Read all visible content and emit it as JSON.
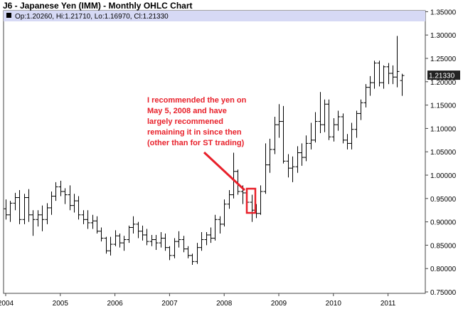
{
  "chart_data": {
    "type": "ohlc",
    "title": "J6 - Japanese Yen (IMM) - Monthly OHLC Chart",
    "info": "Op:1.20260, Hi:1.21710, Lo:1.16970, Cl:1.21330",
    "last_value": "1.21330",
    "ylim": [
      0.75,
      1.36
    ],
    "y_ticks": [
      "0.75000",
      "0.80000",
      "0.85000",
      "0.90000",
      "0.95000",
      "1.00000",
      "1.05000",
      "1.10000",
      "1.15000",
      "1.20000",
      "1.25000",
      "1.30000",
      "1.35000"
    ],
    "x_ticks": [
      "2004",
      "2005",
      "2006",
      "2007",
      "2008",
      "2009",
      "2010",
      "2011"
    ],
    "grid": false,
    "annotation": {
      "lines": [
        "I recommended the yen on",
        "May 5, 2008 and have",
        "largely recommened",
        "remaining it in since then",
        "(other than for ST trading)"
      ]
    },
    "bars": [
      {
        "date": "2004-01",
        "o": 0.928,
        "h": 0.948,
        "l": 0.905,
        "c": 0.915
      },
      {
        "date": "2004-02",
        "o": 0.915,
        "h": 0.945,
        "l": 0.9,
        "c": 0.94
      },
      {
        "date": "2004-03",
        "o": 0.94,
        "h": 0.962,
        "l": 0.925,
        "c": 0.952
      },
      {
        "date": "2004-04",
        "o": 0.952,
        "h": 0.968,
        "l": 0.895,
        "c": 0.905
      },
      {
        "date": "2004-05",
        "o": 0.905,
        "h": 0.96,
        "l": 0.895,
        "c": 0.952
      },
      {
        "date": "2004-06",
        "o": 0.952,
        "h": 0.97,
        "l": 0.9,
        "c": 0.915
      },
      {
        "date": "2004-07",
        "o": 0.915,
        "h": 0.925,
        "l": 0.87,
        "c": 0.905
      },
      {
        "date": "2004-08",
        "o": 0.905,
        "h": 0.925,
        "l": 0.89,
        "c": 0.915
      },
      {
        "date": "2004-09",
        "o": 0.915,
        "h": 0.935,
        "l": 0.88,
        "c": 0.905
      },
      {
        "date": "2004-10",
        "o": 0.905,
        "h": 0.94,
        "l": 0.895,
        "c": 0.93
      },
      {
        "date": "2004-11",
        "o": 0.93,
        "h": 0.965,
        "l": 0.915,
        "c": 0.955
      },
      {
        "date": "2004-12",
        "o": 0.955,
        "h": 0.985,
        "l": 0.945,
        "c": 0.975
      },
      {
        "date": "2005-01",
        "o": 0.975,
        "h": 0.988,
        "l": 0.955,
        "c": 0.965
      },
      {
        "date": "2005-02",
        "o": 0.965,
        "h": 0.972,
        "l": 0.938,
        "c": 0.958
      },
      {
        "date": "2005-03",
        "o": 0.958,
        "h": 0.978,
        "l": 0.925,
        "c": 0.935
      },
      {
        "date": "2005-04",
        "o": 0.935,
        "h": 0.96,
        "l": 0.92,
        "c": 0.945
      },
      {
        "date": "2005-05",
        "o": 0.945,
        "h": 0.955,
        "l": 0.905,
        "c": 0.915
      },
      {
        "date": "2005-06",
        "o": 0.915,
        "h": 0.925,
        "l": 0.895,
        "c": 0.905
      },
      {
        "date": "2005-07",
        "o": 0.905,
        "h": 0.925,
        "l": 0.885,
        "c": 0.898
      },
      {
        "date": "2005-08",
        "o": 0.898,
        "h": 0.915,
        "l": 0.885,
        "c": 0.902
      },
      {
        "date": "2005-09",
        "o": 0.902,
        "h": 0.912,
        "l": 0.875,
        "c": 0.88
      },
      {
        "date": "2005-10",
        "o": 0.88,
        "h": 0.888,
        "l": 0.858,
        "c": 0.865
      },
      {
        "date": "2005-11",
        "o": 0.865,
        "h": 0.868,
        "l": 0.832,
        "c": 0.838
      },
      {
        "date": "2005-12",
        "o": 0.838,
        "h": 0.868,
        "l": 0.828,
        "c": 0.852
      },
      {
        "date": "2006-01",
        "o": 0.852,
        "h": 0.882,
        "l": 0.848,
        "c": 0.87
      },
      {
        "date": "2006-02",
        "o": 0.87,
        "h": 0.875,
        "l": 0.845,
        "c": 0.855
      },
      {
        "date": "2006-03",
        "o": 0.855,
        "h": 0.87,
        "l": 0.838,
        "c": 0.862
      },
      {
        "date": "2006-04",
        "o": 0.862,
        "h": 0.892,
        "l": 0.855,
        "c": 0.888
      },
      {
        "date": "2006-05",
        "o": 0.888,
        "h": 0.912,
        "l": 0.875,
        "c": 0.895
      },
      {
        "date": "2006-06",
        "o": 0.895,
        "h": 0.9,
        "l": 0.865,
        "c": 0.88
      },
      {
        "date": "2006-07",
        "o": 0.88,
        "h": 0.892,
        "l": 0.86,
        "c": 0.872
      },
      {
        "date": "2006-08",
        "o": 0.872,
        "h": 0.885,
        "l": 0.85,
        "c": 0.858
      },
      {
        "date": "2006-09",
        "o": 0.858,
        "h": 0.872,
        "l": 0.848,
        "c": 0.862
      },
      {
        "date": "2006-10",
        "o": 0.862,
        "h": 0.872,
        "l": 0.84,
        "c": 0.855
      },
      {
        "date": "2006-11",
        "o": 0.855,
        "h": 0.878,
        "l": 0.845,
        "c": 0.865
      },
      {
        "date": "2006-12",
        "o": 0.865,
        "h": 0.875,
        "l": 0.838,
        "c": 0.845
      },
      {
        "date": "2007-01",
        "o": 0.845,
        "h": 0.848,
        "l": 0.818,
        "c": 0.828
      },
      {
        "date": "2007-02",
        "o": 0.828,
        "h": 0.865,
        "l": 0.822,
        "c": 0.858
      },
      {
        "date": "2007-03",
        "o": 0.858,
        "h": 0.88,
        "l": 0.845,
        "c": 0.862
      },
      {
        "date": "2007-04",
        "o": 0.862,
        "h": 0.87,
        "l": 0.835,
        "c": 0.842
      },
      {
        "date": "2007-05",
        "o": 0.842,
        "h": 0.848,
        "l": 0.822,
        "c": 0.828
      },
      {
        "date": "2007-06",
        "o": 0.828,
        "h": 0.832,
        "l": 0.808,
        "c": 0.815
      },
      {
        "date": "2007-07",
        "o": 0.815,
        "h": 0.855,
        "l": 0.81,
        "c": 0.845
      },
      {
        "date": "2007-08",
        "o": 0.845,
        "h": 0.878,
        "l": 0.838,
        "c": 0.862
      },
      {
        "date": "2007-09",
        "o": 0.862,
        "h": 0.878,
        "l": 0.85,
        "c": 0.872
      },
      {
        "date": "2007-10",
        "o": 0.872,
        "h": 0.888,
        "l": 0.855,
        "c": 0.865
      },
      {
        "date": "2007-11",
        "o": 0.865,
        "h": 0.915,
        "l": 0.86,
        "c": 0.905
      },
      {
        "date": "2007-12",
        "o": 0.905,
        "h": 0.912,
        "l": 0.875,
        "c": 0.895
      },
      {
        "date": "2008-01",
        "o": 0.895,
        "h": 0.948,
        "l": 0.89,
        "c": 0.938
      },
      {
        "date": "2008-02",
        "o": 0.938,
        "h": 0.968,
        "l": 0.928,
        "c": 0.958
      },
      {
        "date": "2008-03",
        "o": 0.958,
        "h": 1.048,
        "l": 0.95,
        "c": 1.008
      },
      {
        "date": "2008-04",
        "o": 1.008,
        "h": 1.012,
        "l": 0.958,
        "c": 0.965
      },
      {
        "date": "2008-05",
        "o": 0.965,
        "h": 0.978,
        "l": 0.938,
        "c": 0.962
      },
      {
        "date": "2008-06",
        "o": 0.962,
        "h": 0.968,
        "l": 0.922,
        "c": 0.942
      },
      {
        "date": "2008-07",
        "o": 0.942,
        "h": 0.958,
        "l": 0.9,
        "c": 0.925
      },
      {
        "date": "2008-08",
        "o": 0.925,
        "h": 0.938,
        "l": 0.908,
        "c": 0.918
      },
      {
        "date": "2008-09",
        "o": 0.918,
        "h": 0.978,
        "l": 0.915,
        "c": 0.965
      },
      {
        "date": "2008-10",
        "o": 0.965,
        "h": 1.068,
        "l": 0.96,
        "c": 1.022
      },
      {
        "date": "2008-11",
        "o": 1.022,
        "h": 1.078,
        "l": 1.005,
        "c": 1.055
      },
      {
        "date": "2008-12",
        "o": 1.055,
        "h": 1.125,
        "l": 1.045,
        "c": 1.108
      },
      {
        "date": "2009-01",
        "o": 1.108,
        "h": 1.152,
        "l": 1.08,
        "c": 1.115
      },
      {
        "date": "2009-02",
        "o": 1.115,
        "h": 1.148,
        "l": 1.025,
        "c": 1.03
      },
      {
        "date": "2009-03",
        "o": 1.03,
        "h": 1.045,
        "l": 0.995,
        "c": 1.015
      },
      {
        "date": "2009-04",
        "o": 1.015,
        "h": 1.04,
        "l": 0.985,
        "c": 1.018
      },
      {
        "date": "2009-05",
        "o": 1.018,
        "h": 1.062,
        "l": 1.005,
        "c": 1.048
      },
      {
        "date": "2009-06",
        "o": 1.048,
        "h": 1.068,
        "l": 1.02,
        "c": 1.038
      },
      {
        "date": "2009-07",
        "o": 1.038,
        "h": 1.085,
        "l": 1.03,
        "c": 1.068
      },
      {
        "date": "2009-08",
        "o": 1.068,
        "h": 1.112,
        "l": 1.055,
        "c": 1.075
      },
      {
        "date": "2009-09",
        "o": 1.075,
        "h": 1.135,
        "l": 1.07,
        "c": 1.115
      },
      {
        "date": "2009-10",
        "o": 1.115,
        "h": 1.178,
        "l": 1.09,
        "c": 1.108
      },
      {
        "date": "2009-11",
        "o": 1.108,
        "h": 1.162,
        "l": 1.092,
        "c": 1.152
      },
      {
        "date": "2009-12",
        "o": 1.152,
        "h": 1.162,
        "l": 1.075,
        "c": 1.082
      },
      {
        "date": "2010-01",
        "o": 1.082,
        "h": 1.122,
        "l": 1.072,
        "c": 1.108
      },
      {
        "date": "2010-02",
        "o": 1.108,
        "h": 1.138,
        "l": 1.095,
        "c": 1.125
      },
      {
        "date": "2010-03",
        "o": 1.125,
        "h": 1.132,
        "l": 1.068,
        "c": 1.075
      },
      {
        "date": "2010-04",
        "o": 1.075,
        "h": 1.088,
        "l": 1.055,
        "c": 1.068
      },
      {
        "date": "2010-05",
        "o": 1.068,
        "h": 1.112,
        "l": 1.055,
        "c": 1.098
      },
      {
        "date": "2010-06",
        "o": 1.098,
        "h": 1.138,
        "l": 1.08,
        "c": 1.132
      },
      {
        "date": "2010-07",
        "o": 1.132,
        "h": 1.162,
        "l": 1.118,
        "c": 1.155
      },
      {
        "date": "2010-08",
        "o": 1.155,
        "h": 1.195,
        "l": 1.145,
        "c": 1.188
      },
      {
        "date": "2010-09",
        "o": 1.188,
        "h": 1.212,
        "l": 1.17,
        "c": 1.198
      },
      {
        "date": "2010-10",
        "o": 1.198,
        "h": 1.245,
        "l": 1.185,
        "c": 1.24
      },
      {
        "date": "2010-11",
        "o": 1.24,
        "h": 1.245,
        "l": 1.19,
        "c": 1.198
      },
      {
        "date": "2010-12",
        "o": 1.198,
        "h": 1.235,
        "l": 1.185,
        "c": 1.232
      },
      {
        "date": "2011-01",
        "o": 1.232,
        "h": 1.24,
        "l": 1.195,
        "c": 1.218
      },
      {
        "date": "2011-02",
        "o": 1.218,
        "h": 1.235,
        "l": 1.195,
        "c": 1.21
      },
      {
        "date": "2011-03",
        "o": 1.21,
        "h": 1.298,
        "l": 1.188,
        "c": 1.222
      },
      {
        "date": "2011-04",
        "o": 1.2026,
        "h": 1.2171,
        "l": 1.1697,
        "c": 1.2133
      }
    ]
  }
}
